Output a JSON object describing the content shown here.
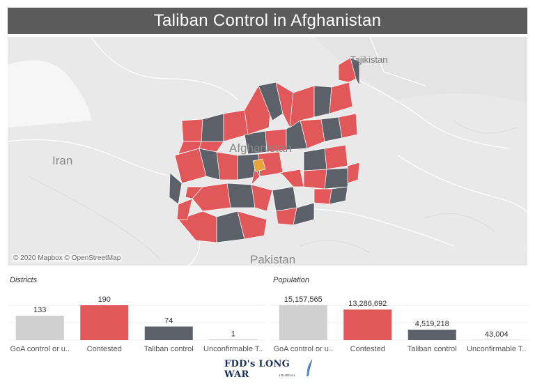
{
  "title": "Taliban Control in Afghanistan",
  "map": {
    "labels": {
      "afghanistan": "Afghanistan",
      "iran": "Iran",
      "pakistan": "Pakistan",
      "tajikistan": "Tajikistan"
    },
    "credit": "© 2020 Mapbox © OpenStreetMap",
    "colors": {
      "background": "#e9e9e9",
      "goa": "#d0d0d0",
      "contested": "#e2575a",
      "taliban": "#5c6069",
      "highlight": "#e8a33a"
    }
  },
  "chart_data": [
    {
      "type": "bar",
      "title": "Districts",
      "categories": [
        "GoA control or u..",
        "Contested",
        "Taliban control",
        "Unconfirmable T.."
      ],
      "values": [
        133,
        190,
        74,
        1
      ],
      "value_labels": [
        "133",
        "190",
        "74",
        "1"
      ],
      "colors": [
        "#d0d0d0",
        "#e2575a",
        "#5c6069",
        "#5c6069"
      ],
      "ylim": [
        0,
        190
      ],
      "grid": true
    },
    {
      "type": "bar",
      "title": "Population",
      "categories": [
        "GoA control or u..",
        "Contested",
        "Taliban control",
        "Unconfirmable T.."
      ],
      "values": [
        15157565,
        13286692,
        4519218,
        43004
      ],
      "value_labels": [
        "15,157,565",
        "13,286,692",
        "4,519,218",
        "43,004"
      ],
      "colors": [
        "#d0d0d0",
        "#e2575a",
        "#5c6069",
        "#5c6069"
      ],
      "ylim": [
        0,
        15157565
      ],
      "grid": true
    }
  ],
  "footer": {
    "logo_text": "FDD's LONG WAR",
    "logo_subtext": "JOURNAL",
    "logo_icon": "quill-icon"
  }
}
